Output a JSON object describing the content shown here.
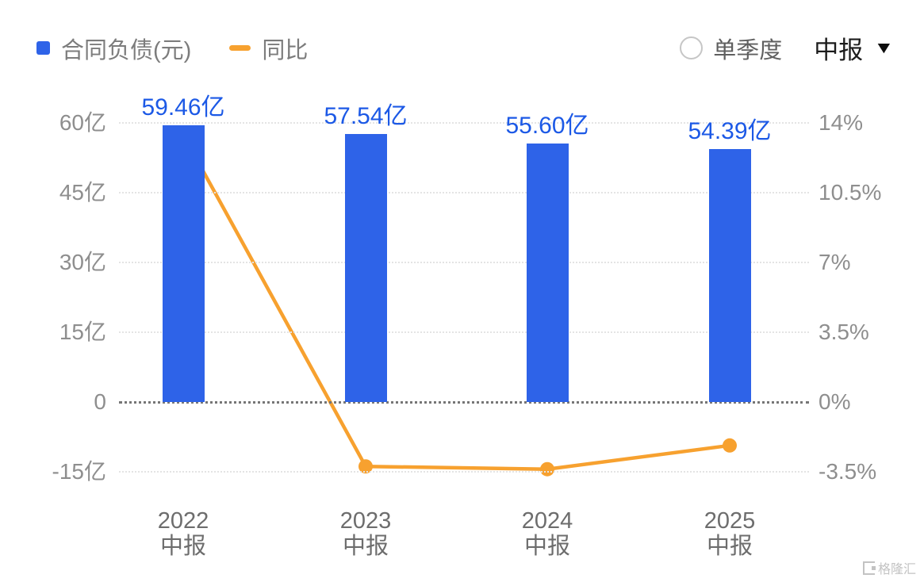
{
  "legend": {
    "bar_label": "合同负债(元)",
    "line_label": "同比"
  },
  "controls": {
    "radio_label": "单季度",
    "period_label": "中报",
    "dropdown_icon": "▼"
  },
  "watermark": {
    "text": "格隆汇"
  },
  "colors": {
    "bar": "#2e63e8",
    "line": "#f7a12f",
    "bar_label": "#1c59e6",
    "axis_text": "#8e8e8e"
  },
  "chart_data": {
    "type": "bar",
    "title": "",
    "categories": [
      "2022",
      "2023",
      "2024",
      "2025"
    ],
    "category_sub": "中报",
    "bar_series": {
      "name": "合同负债(元)",
      "unit": "亿",
      "values_yi": [
        59.46,
        57.54,
        55.6,
        54.39
      ],
      "labels": [
        "59.46亿",
        "57.54亿",
        "55.60亿",
        "54.39亿"
      ]
    },
    "line_series": {
      "name": "同比",
      "unit": "%",
      "values_pct": [
        13.4,
        -3.23,
        -3.37,
        -2.18
      ]
    },
    "left_axis": {
      "ticks": [
        "60亿",
        "45亿",
        "30亿",
        "15亿",
        "0",
        "-15亿"
      ],
      "values": [
        60,
        45,
        30,
        15,
        0,
        -15
      ],
      "range": [
        -15,
        60
      ]
    },
    "right_axis": {
      "ticks": [
        "14%",
        "10.5%",
        "7%",
        "3.5%",
        "0%",
        "-3.5%"
      ],
      "values": [
        14,
        10.5,
        7,
        3.5,
        0,
        -3.5
      ],
      "range": [
        -3.5,
        14
      ]
    },
    "grid": "dotted horizontal lines, emphasized zero line",
    "legend_position": "top-left"
  }
}
